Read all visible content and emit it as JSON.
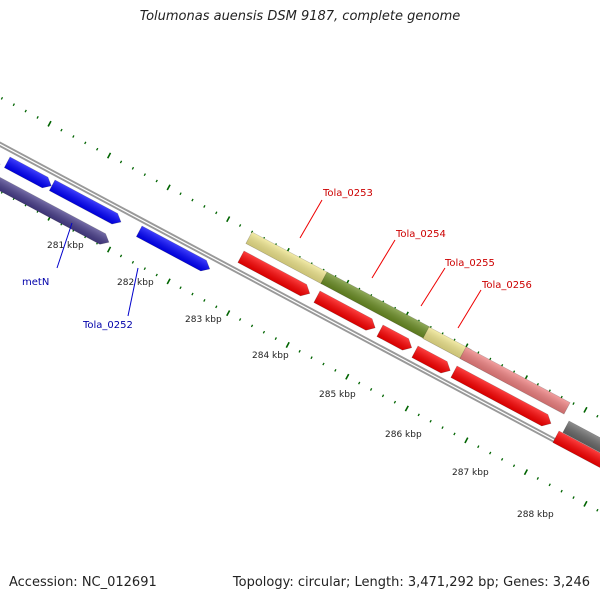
{
  "title": "Tolumonas auensis DSM 9187, complete genome",
  "footer": {
    "accession": "Accession: NC_012691",
    "stats": "Topology: circular; Length: 3,471,292 bp; Genes: 3,246"
  },
  "colors": {
    "blue": "#0000ff",
    "dark_blue": "#483d8b",
    "red": "#ff0000",
    "khaki": "#f0e68c",
    "olive": "#6b8e23",
    "salmon": "#f08080",
    "gray": "#696969",
    "backbone": "#999999",
    "tick": "#006400"
  },
  "scale_labels": [
    "281 kbp",
    "282 kbp",
    "283 kbp",
    "284 kbp",
    "285 kbp",
    "286 kbp",
    "287 kbp",
    "288 kbp"
  ],
  "gene_labels": [
    {
      "text": "metN",
      "color": "#0000aa"
    },
    {
      "text": "Tola_0252",
      "color": "#0000aa"
    },
    {
      "text": "Tola_0253",
      "color": "#cc0000"
    },
    {
      "text": "Tola_0254",
      "color": "#cc0000"
    },
    {
      "text": "Tola_0255",
      "color": "#cc0000"
    },
    {
      "text": "Tola_0256",
      "color": "#cc0000"
    }
  ]
}
